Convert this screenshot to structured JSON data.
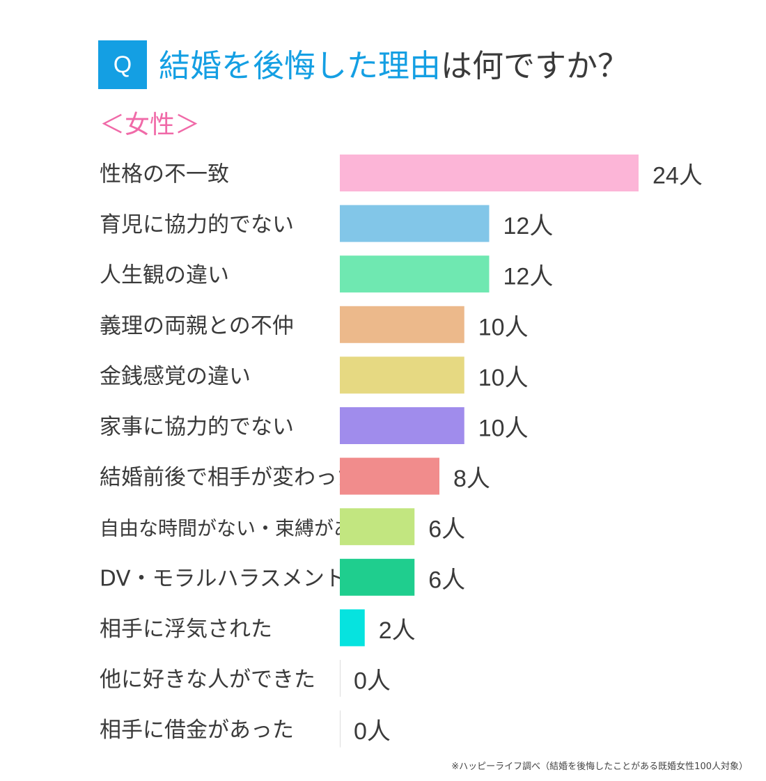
{
  "question_badge": "Q",
  "title": {
    "highlight": "結婚を後悔した理由",
    "rest": "は何ですか？"
  },
  "subtitle": "＜女性＞",
  "footnote": "※ハッピーライフ調べ（結婚を後悔したことがある既婚女性100人対象）",
  "colors": {
    "accent": "#149fe3",
    "subtitle": "#f06aa8",
    "text": "#3a3a3a"
  },
  "chart_data": {
    "type": "bar",
    "orientation": "horizontal",
    "unit": "人",
    "categories": [
      "性格の不一致",
      "育児に協力的でない",
      "人生観の違い",
      "義理の両親との不仲",
      "金銭感覚の違い",
      "家事に協力的でない",
      "結婚前後で相手が変わった",
      "自由な時間がない・束縛がある",
      "DV・モラルハラスメント",
      "相手に浮気された",
      "他に好きな人ができた",
      "相手に借金があった"
    ],
    "values": [
      24,
      12,
      12,
      10,
      10,
      10,
      8,
      6,
      6,
      2,
      0,
      0
    ],
    "value_labels": [
      "24人",
      "12人",
      "12人",
      "10人",
      "10人",
      "10人",
      "8人",
      "6人",
      "6人",
      "2人",
      "0人",
      "0人"
    ],
    "bar_colors": [
      "#fcb5d7",
      "#82c6e8",
      "#6fe8b1",
      "#ecb98b",
      "#e6d982",
      "#a08cec",
      "#f18c8c",
      "#c2e680",
      "#1fce8e",
      "#06e3df",
      "#dddddd",
      "#dddddd"
    ],
    "grid": false,
    "legend": "none"
  }
}
